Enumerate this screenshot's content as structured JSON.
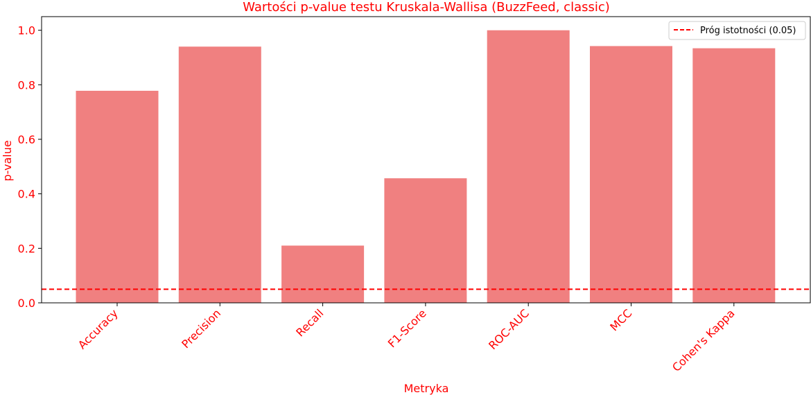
{
  "chart_data": {
    "type": "bar",
    "title": "Wartości p-value testu Kruskala-Wallisa (BuzzFeed, classic)",
    "xlabel": "Metryka",
    "ylabel": "p-value",
    "categories": [
      "Accuracy",
      "Precision",
      "Recall",
      "F1-Score",
      "ROC-AUC",
      "MCC",
      "Cohen's Kappa"
    ],
    "values": [
      0.778,
      0.94,
      0.21,
      0.457,
      1.0,
      0.942,
      0.934
    ],
    "ylim": [
      0,
      1.05
    ],
    "yticks": [
      "0.0",
      "0.2",
      "0.4",
      "0.6",
      "0.8",
      "1.0"
    ],
    "bar_color": "#f08080",
    "text_color": "#ff0000",
    "threshold": {
      "value": 0.05,
      "label": "Próg istotności (0.05)",
      "color": "#ff0000",
      "style": "dashed"
    },
    "legend_position": "top-right",
    "grid": false
  }
}
